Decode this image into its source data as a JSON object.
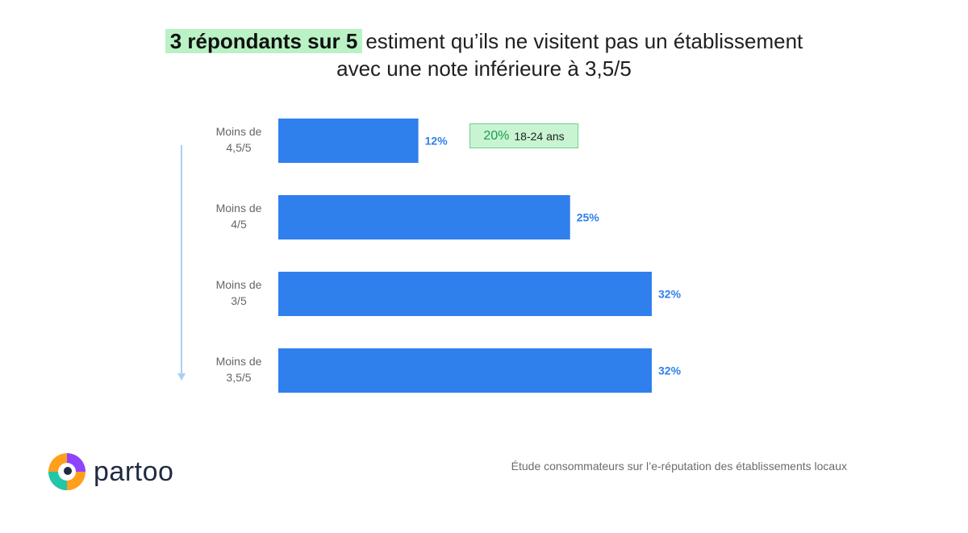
{
  "header": {
    "highlight": "3 répondants sur 5",
    "line1_rest": "estiment qu’ils ne visitent pas un établissement",
    "line2": "avec une note inférieure à 3,5/5"
  },
  "callout": {
    "percent": "20%",
    "label": "18-24 ans"
  },
  "footer": {
    "caption": "Étude consommateurs sur l’e-réputation des établissements locaux"
  },
  "logo": {
    "text": "partoo"
  },
  "colors": {
    "bar": "#2f80ed",
    "value_label": "#2f80ed",
    "arrow": "#a8d0f5",
    "highlight": "#b9f2c4"
  },
  "chart_data": {
    "type": "bar",
    "orientation": "horizontal",
    "categories": [
      [
        "Moins de",
        "4,5/5"
      ],
      [
        "Moins de",
        "4/5"
      ],
      [
        "Moins de",
        "3/5"
      ],
      [
        "Moins de",
        "3,5/5"
      ]
    ],
    "values": [
      12,
      25,
      32,
      32
    ],
    "value_labels": [
      "12%",
      "25%",
      "32%",
      "32%"
    ],
    "xlim": [
      0,
      32
    ],
    "grid": false,
    "legend": "none"
  }
}
